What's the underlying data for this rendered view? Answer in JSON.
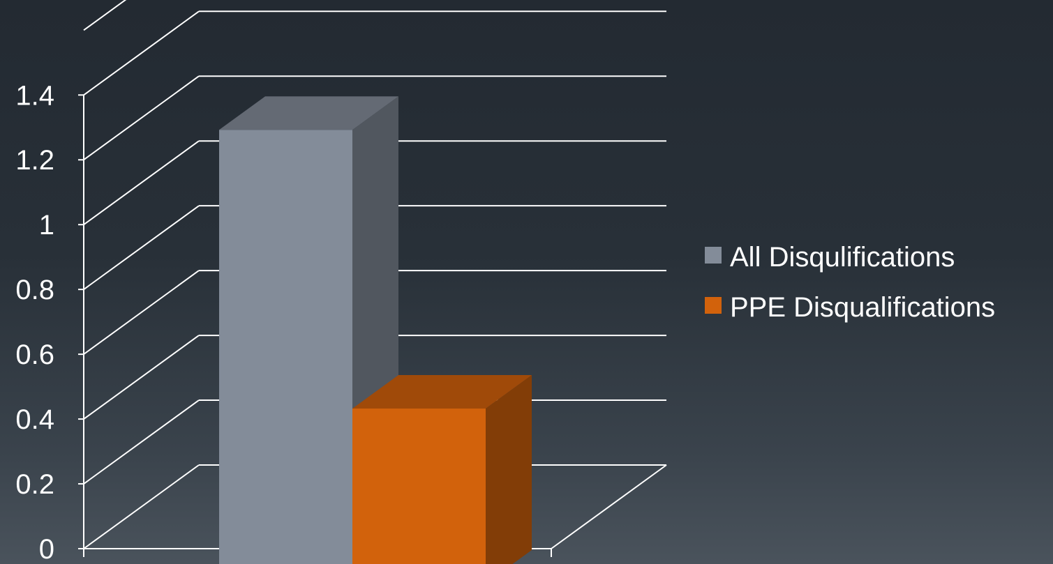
{
  "chart_data": {
    "type": "bar",
    "style": "3d-clustered-column",
    "categories": [
      ""
    ],
    "series": [
      {
        "name": "All Disqulifications",
        "values": [
          1.4
        ],
        "color": "#838c99"
      },
      {
        "name": "PPE Disqualifications",
        "values": [
          0.54
        ],
        "color": "#d2620c"
      }
    ],
    "yticks": [
      "0",
      "0.2",
      "0.4",
      "0.6",
      "0.8",
      "1",
      "1.2",
      "1.4"
    ],
    "ylim": [
      0,
      1.6
    ],
    "title": "",
    "xlabel": "",
    "ylabel": "",
    "grid": true,
    "legend_position": "right",
    "axis_color": "#ffffff"
  }
}
